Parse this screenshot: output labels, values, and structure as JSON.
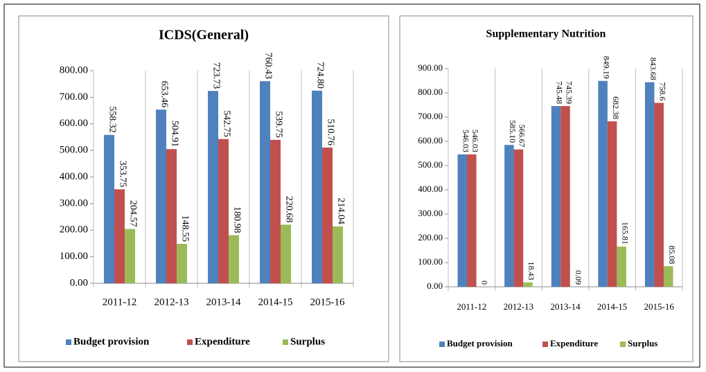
{
  "chart_data": [
    {
      "type": "bar",
      "title": "ICDS(General)",
      "categories": [
        "2011-12",
        "2012-13",
        "2013-14",
        "2014-15",
        "2015-16"
      ],
      "series": [
        {
          "name": "Budget provision",
          "color": "#4f81bd",
          "values": [
            558.32,
            653.46,
            723.73,
            760.43,
            724.8
          ],
          "value_labels": [
            "558.32",
            "653.46",
            "723.73",
            "760.43",
            "724.80"
          ]
        },
        {
          "name": "Expenditure",
          "color": "#c0504d",
          "values": [
            353.75,
            504.91,
            542.75,
            539.75,
            510.76
          ],
          "value_labels": [
            "353.75",
            "504.91",
            "542.75",
            "539.75",
            "510.76"
          ]
        },
        {
          "name": "Surplus",
          "color": "#9bbb59",
          "values": [
            204.57,
            148.55,
            180.98,
            220.68,
            214.04
          ],
          "value_labels": [
            "204.57",
            "148.55",
            "180.98",
            "220.68",
            "214.04"
          ]
        }
      ],
      "ylim": [
        0,
        800
      ],
      "yticks": [
        {
          "value": 0,
          "label": "0.00"
        },
        {
          "value": 100,
          "label": "100.00"
        },
        {
          "value": 200,
          "label": "200.00"
        },
        {
          "value": 300,
          "label": "300.00"
        },
        {
          "value": 400,
          "label": "400.00"
        },
        {
          "value": 500,
          "label": "500.00"
        },
        {
          "value": 600,
          "label": "600.00"
        },
        {
          "value": 700,
          "label": "700.00"
        },
        {
          "value": 800,
          "label": "800.00"
        }
      ],
      "legend": "bottom"
    },
    {
      "type": "bar",
      "title": "Supplementary Nutrition",
      "categories": [
        "2011-12",
        "2012-13",
        "2013-14",
        "2014-15",
        "2015-16"
      ],
      "series": [
        {
          "name": "Budget provision",
          "color": "#4f81bd",
          "values": [
            546.03,
            585.1,
            745.48,
            849.19,
            843.68
          ],
          "value_labels": [
            "546.03",
            "585.10",
            "745.48",
            "849.19",
            "843.68"
          ]
        },
        {
          "name": "Expenditure",
          "color": "#c0504d",
          "values": [
            546.03,
            566.67,
            745.39,
            682.38,
            758.6
          ],
          "value_labels": [
            "546.03",
            "566.67",
            "745.39",
            "682.38",
            "758.6"
          ]
        },
        {
          "name": "Surplus",
          "color": "#9bbb59",
          "values": [
            0,
            18.43,
            0.09,
            165.81,
            85.08
          ],
          "value_labels": [
            "0",
            "18.43",
            "0.09",
            "165.81",
            "85.08"
          ]
        }
      ],
      "ylim": [
        0,
        900
      ],
      "yticks": [
        {
          "value": 0,
          "label": "0.00"
        },
        {
          "value": 100,
          "label": "100.00"
        },
        {
          "value": 200,
          "label": "200.00"
        },
        {
          "value": 300,
          "label": "300.00"
        },
        {
          "value": 400,
          "label": "400.00"
        },
        {
          "value": 500,
          "label": "500.00"
        },
        {
          "value": 600,
          "label": "600.00"
        },
        {
          "value": 700,
          "label": "700.00"
        },
        {
          "value": 800,
          "label": "800.00"
        },
        {
          "value": 900,
          "label": "900.00"
        }
      ],
      "legend": "bottom"
    }
  ]
}
